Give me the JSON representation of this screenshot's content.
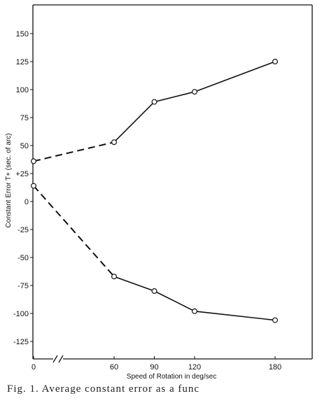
{
  "chart_data": {
    "type": "line",
    "xlabel": "Speed of Rotation in deg/sec",
    "ylabel": "Constant Error T+ (sec. of arc)",
    "x_ticks": [
      0,
      60,
      90,
      120,
      180
    ],
    "y_ticks": [
      150,
      125,
      100,
      75,
      50,
      25,
      0,
      -25,
      -50,
      -75,
      -100,
      -125
    ],
    "y_tick_labels": [
      "150",
      "125",
      "100",
      "75",
      "50",
      "+25",
      "0",
      "-25",
      "-50",
      "-75",
      "-100",
      "-125"
    ],
    "xlim": [
      0,
      210
    ],
    "ylim": [
      -140,
      170
    ],
    "axis_break": "x-axis break between 0 and 60",
    "grid": false,
    "series": [
      {
        "x": [
          0,
          60,
          90,
          120,
          180
        ],
        "values": [
          36,
          53,
          89,
          98,
          125
        ],
        "dashed_segment": "0-60"
      },
      {
        "x": [
          0,
          60,
          90,
          120,
          180
        ],
        "values": [
          14,
          -67,
          -80,
          -98,
          -106
        ],
        "dashed_segment": "0-60"
      }
    ]
  },
  "caption": "Fig. 1.  Average constant error as a func"
}
